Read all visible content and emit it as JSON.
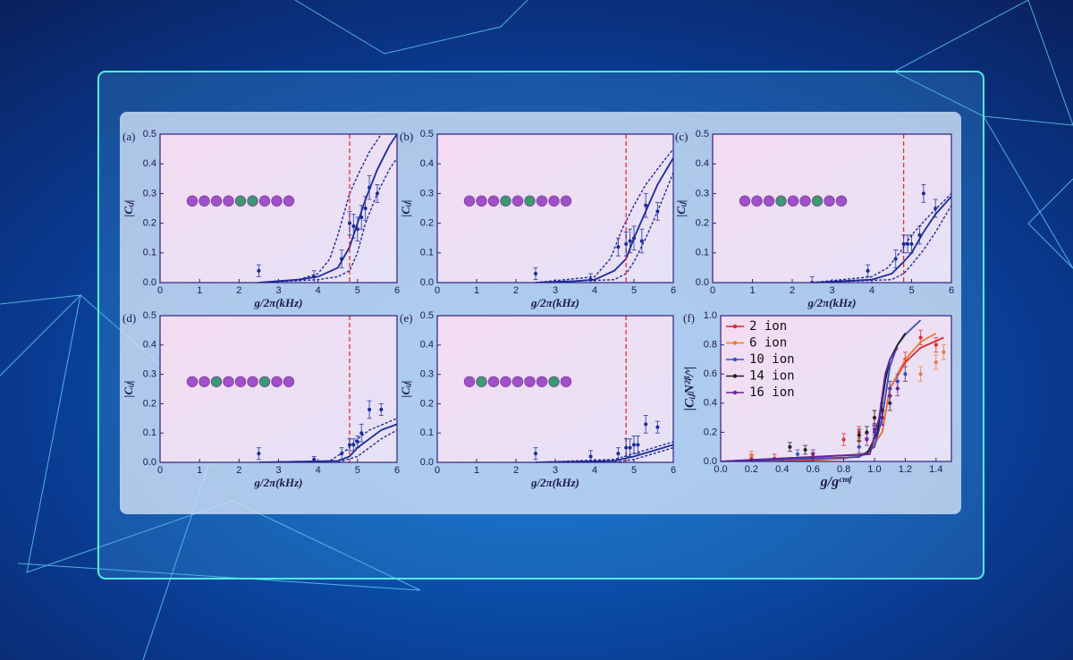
{
  "chart_data": [
    {
      "type": "scatter",
      "label": "(a)",
      "xlabel": "g/2π(kHz)",
      "ylabel": "|Cᵢⱼ|",
      "xlim": [
        0,
        6
      ],
      "xticks": [
        0,
        1,
        2,
        3,
        4,
        5,
        6
      ],
      "ylim": [
        0,
        0.5
      ],
      "yticks": [
        {
          "value": 0,
          "label": "0.0"
        },
        0.1,
        0.2,
        0.3,
        0.4,
        0.5
      ],
      "vline": 4.8,
      "vline_color": "#e03030",
      "color": "#1a2a9a",
      "chain": [
        "#a050c8",
        "#a050c8",
        "#a050c8",
        "#a050c8",
        "#3a9a70",
        "#3a9a70",
        "#a050c8",
        "#a050c8",
        "#a050c8"
      ],
      "points": {
        "x": [
          2.5,
          3.9,
          4.6,
          4.8,
          4.9,
          5.0,
          5.1,
          5.2,
          5.3,
          5.5
        ],
        "values": [
          0.04,
          0.02,
          0.08,
          0.2,
          0.19,
          0.18,
          0.22,
          0.25,
          0.32,
          0.3
        ],
        "errors": [
          0.02,
          0.02,
          0.03,
          0.04,
          0.04,
          0.04,
          0.04,
          0.04,
          0.04,
          0.03
        ]
      },
      "theory": {
        "x": [
          2.5,
          3,
          3.5,
          4,
          4.5,
          4.8,
          5,
          5.2,
          5.5,
          5.8,
          6
        ],
        "values": [
          0,
          0.005,
          0.01,
          0.02,
          0.05,
          0.12,
          0.2,
          0.28,
          0.38,
          0.46,
          0.5
        ]
      },
      "upper": {
        "x": [
          2.5,
          3.5,
          4,
          4.3,
          4.5,
          4.8,
          5,
          5.3,
          5.6
        ],
        "values": [
          0,
          0.01,
          0.03,
          0.08,
          0.16,
          0.3,
          0.36,
          0.44,
          0.5
        ]
      },
      "lower": {
        "x": [
          2.5,
          4,
          4.5,
          4.8,
          5,
          5.2,
          5.5,
          5.8,
          6
        ],
        "values": [
          0,
          0.01,
          0.02,
          0.04,
          0.1,
          0.2,
          0.3,
          0.38,
          0.42
        ]
      }
    },
    {
      "type": "scatter",
      "label": "(b)",
      "xlabel": "g/2π(kHz)",
      "ylabel": "|Cᵢⱼ|",
      "xlim": [
        0,
        6
      ],
      "xticks": [
        0,
        1,
        2,
        3,
        4,
        5,
        6
      ],
      "ylim": [
        0,
        0.5
      ],
      "yticks": [
        {
          "value": 0,
          "label": "0.0"
        },
        0.1,
        0.2,
        0.3,
        0.4,
        0.5
      ],
      "vline": 4.8,
      "vline_color": "#e03030",
      "color": "#1a2a9a",
      "chain": [
        "#a050c8",
        "#a050c8",
        "#a050c8",
        "#3a9a70",
        "#a050c8",
        "#3a9a70",
        "#a050c8",
        "#a050c8",
        "#a050c8"
      ],
      "points": {
        "x": [
          2.5,
          3.9,
          4.6,
          4.8,
          4.9,
          5.0,
          5.2,
          5.3,
          5.6
        ],
        "values": [
          0.03,
          0.01,
          0.12,
          0.13,
          0.14,
          0.15,
          0.14,
          0.26,
          0.24
        ],
        "errors": [
          0.02,
          0.02,
          0.03,
          0.04,
          0.04,
          0.04,
          0.04,
          0.04,
          0.03
        ]
      },
      "theory": {
        "x": [
          2.5,
          3.5,
          4,
          4.5,
          4.8,
          5,
          5.3,
          5.6,
          6
        ],
        "values": [
          0,
          0.005,
          0.01,
          0.04,
          0.08,
          0.15,
          0.24,
          0.33,
          0.42
        ]
      },
      "upper": {
        "x": [
          2.5,
          4,
          4.4,
          4.7,
          5,
          5.3,
          5.7,
          6
        ],
        "values": [
          0,
          0.02,
          0.08,
          0.18,
          0.26,
          0.33,
          0.4,
          0.45
        ]
      },
      "lower": {
        "x": [
          2.5,
          4.5,
          4.8,
          5,
          5.3,
          5.6,
          6
        ],
        "values": [
          0,
          0.01,
          0.03,
          0.07,
          0.15,
          0.24,
          0.37
        ]
      }
    },
    {
      "type": "scatter",
      "label": "(c)",
      "xlabel": "g/2π(kHz)",
      "ylabel": "|Cᵢⱼ|",
      "xlim": [
        0,
        6
      ],
      "xticks": [
        0,
        1,
        2,
        3,
        4,
        5,
        6
      ],
      "ylim": [
        0,
        0.5
      ],
      "yticks": [
        {
          "value": 0,
          "label": "0.0"
        },
        0.1,
        0.2,
        0.3,
        0.4,
        0.5
      ],
      "vline": 4.8,
      "vline_color": "#e03030",
      "color": "#1a2a9a",
      "chain": [
        "#a050c8",
        "#a050c8",
        "#a050c8",
        "#3a9a70",
        "#a050c8",
        "#a050c8",
        "#3a9a70",
        "#a050c8",
        "#a050c8"
      ],
      "points": {
        "x": [
          2.5,
          3.9,
          4.6,
          4.8,
          4.9,
          5.0,
          5.2,
          5.3,
          5.6
        ],
        "values": [
          0,
          0.04,
          0.08,
          0.13,
          0.13,
          0.13,
          0.16,
          0.3,
          0.25
        ],
        "errors": [
          0.02,
          0.02,
          0.03,
          0.03,
          0.03,
          0.03,
          0.03,
          0.03,
          0.03
        ]
      },
      "theory": {
        "x": [
          2.5,
          4,
          4.5,
          4.8,
          5,
          5.3,
          5.6,
          6
        ],
        "values": [
          0,
          0.01,
          0.03,
          0.07,
          0.1,
          0.17,
          0.23,
          0.29
        ]
      },
      "upper": {
        "x": [
          2.5,
          4,
          4.4,
          4.7,
          5,
          5.4,
          6
        ],
        "values": [
          0,
          0.02,
          0.05,
          0.1,
          0.16,
          0.22,
          0.3
        ]
      },
      "lower": {
        "x": [
          2.5,
          4.5,
          4.8,
          5,
          5.3,
          5.6,
          6
        ],
        "values": [
          0,
          0.01,
          0.03,
          0.06,
          0.11,
          0.17,
          0.26
        ]
      }
    },
    {
      "type": "scatter",
      "label": "(d)",
      "xlabel": "g/2π(kHz)",
      "ylabel": "|Cᵢⱼ|",
      "xlim": [
        0,
        6
      ],
      "xticks": [
        0,
        1,
        2,
        3,
        4,
        5,
        6
      ],
      "ylim": [
        0,
        0.5
      ],
      "yticks": [
        {
          "value": 0,
          "label": "0.0"
        },
        0.1,
        0.2,
        0.3,
        0.4,
        0.5
      ],
      "vline": 4.8,
      "vline_color": "#e03030",
      "color": "#1a2a9a",
      "chain": [
        "#a050c8",
        "#a050c8",
        "#3a9a70",
        "#a050c8",
        "#a050c8",
        "#a050c8",
        "#3a9a70",
        "#a050c8",
        "#a050c8"
      ],
      "points": {
        "x": [
          2.5,
          3.9,
          4.6,
          4.8,
          4.9,
          5.0,
          5.1,
          5.3,
          5.6
        ],
        "values": [
          0.03,
          0.01,
          0.03,
          0.06,
          0.06,
          0.07,
          0.1,
          0.18,
          0.18
        ],
        "errors": [
          0.02,
          0.01,
          0.02,
          0.02,
          0.02,
          0.02,
          0.03,
          0.03,
          0.02
        ]
      },
      "theory": {
        "x": [
          2.5,
          4.5,
          4.8,
          5,
          5.3,
          5.6,
          6
        ],
        "values": [
          0,
          0.005,
          0.02,
          0.05,
          0.08,
          0.11,
          0.13
        ]
      },
      "upper": {
        "x": [
          2.5,
          4.3,
          4.7,
          5,
          5.3,
          6
        ],
        "values": [
          0,
          0.005,
          0.04,
          0.08,
          0.11,
          0.15
        ]
      },
      "lower": {
        "x": [
          4.5,
          5,
          5.3,
          5.6,
          6
        ],
        "values": [
          0,
          0.02,
          0.05,
          0.08,
          0.11
        ]
      }
    },
    {
      "type": "scatter",
      "label": "(e)",
      "xlabel": "g/2π(kHz)",
      "ylabel": "|Cᵢⱼ|",
      "xlim": [
        0,
        6
      ],
      "xticks": [
        0,
        1,
        2,
        3,
        4,
        5,
        6
      ],
      "ylim": [
        0,
        0.5
      ],
      "yticks": [
        {
          "value": 0,
          "label": "0.0"
        },
        0.1,
        0.2,
        0.3,
        0.4,
        0.5
      ],
      "vline": 4.8,
      "vline_color": "#e03030",
      "color": "#1a2a9a",
      "chain": [
        "#a050c8",
        "#3a9a70",
        "#a050c8",
        "#a050c8",
        "#a050c8",
        "#a050c8",
        "#a050c8",
        "#3a9a70",
        "#a050c8"
      ],
      "points": {
        "x": [
          2.5,
          3.9,
          4.6,
          4.8,
          4.9,
          5.0,
          5.1,
          5.3,
          5.6
        ],
        "values": [
          0.03,
          0.02,
          0.03,
          0.05,
          0.05,
          0.06,
          0.06,
          0.13,
          0.12
        ],
        "errors": [
          0.02,
          0.02,
          0.02,
          0.03,
          0.03,
          0.03,
          0.03,
          0.03,
          0.02
        ]
      },
      "theory": {
        "x": [
          2.5,
          4.5,
          5,
          5.5,
          6
        ],
        "values": [
          0,
          0.005,
          0.02,
          0.04,
          0.06
        ]
      },
      "upper": {
        "x": [
          2.5,
          4.5,
          5,
          5.5,
          6
        ],
        "values": [
          0,
          0.01,
          0.03,
          0.05,
          0.07
        ]
      },
      "lower": {
        "x": [
          4.5,
          5,
          5.5,
          6
        ],
        "values": [
          0,
          0.01,
          0.03,
          0.05
        ]
      }
    },
    {
      "type": "line",
      "label": "(f)",
      "xlabel": "g/gᶜᵐᶠ",
      "ylabel": "|CᵢⱼN²ᵝ/ᵛ|",
      "xlim": [
        0,
        1.5
      ],
      "xticks": [
        {
          "value": 0,
          "label": "0.0"
        },
        0.2,
        0.4,
        0.6,
        0.8,
        {
          "value": 1,
          "label": "1.0"
        },
        1.2,
        1.4
      ],
      "ylim": [
        0,
        1
      ],
      "yticks": [
        {
          "value": 0,
          "label": "0.0"
        },
        0.2,
        0.4,
        0.6,
        0.8,
        {
          "value": 1,
          "label": "1.0"
        }
      ],
      "legend": "upper left",
      "series": [
        {
          "name": "2 ion",
          "color": "#e02828",
          "x": [
            0.2,
            0.35,
            0.6,
            0.8,
            0.9,
            1.0,
            1.1,
            1.2,
            1.3,
            1.4
          ],
          "values": [
            0.02,
            0.02,
            0.03,
            0.15,
            0.2,
            0.3,
            0.5,
            0.7,
            0.85,
            0.8
          ],
          "errors": [
            0.03,
            0.03,
            0.03,
            0.04,
            0.04,
            0.05,
            0.05,
            0.05,
            0.05,
            0.05
          ],
          "curve_x": [
            0,
            0.5,
            0.8,
            0.95,
            1.05,
            1.1,
            1.2,
            1.3,
            1.45
          ],
          "curve": [
            0,
            0.005,
            0.02,
            0.05,
            0.2,
            0.5,
            0.68,
            0.78,
            0.85
          ]
        },
        {
          "name": "6 ion",
          "color": "#f07830",
          "x": [
            0.2,
            0.6,
            0.9,
            1.0,
            1.1,
            1.2,
            1.3,
            1.4,
            1.45
          ],
          "values": [
            0.04,
            0.03,
            0.14,
            0.2,
            0.45,
            0.6,
            0.6,
            0.68,
            0.75
          ],
          "errors": [
            0.03,
            0.03,
            0.04,
            0.04,
            0.05,
            0.05,
            0.05,
            0.05,
            0.05
          ],
          "curve_x": [
            0,
            0.8,
            0.95,
            1.05,
            1.1,
            1.2,
            1.3,
            1.4
          ],
          "curve": [
            0,
            0.02,
            0.06,
            0.2,
            0.5,
            0.7,
            0.82,
            0.88
          ]
        },
        {
          "name": "10 ion",
          "color": "#3050c0",
          "x": [
            0.5,
            0.9,
            1.0,
            1.05,
            1.1,
            1.15,
            1.2
          ],
          "values": [
            0.05,
            0.1,
            0.2,
            0.3,
            0.5,
            0.55,
            0.6
          ],
          "errors": [
            0.03,
            0.04,
            0.04,
            0.05,
            0.05,
            0.05,
            0.05
          ],
          "curve_x": [
            0,
            0.9,
            1.0,
            1.05,
            1.1,
            1.15,
            1.2,
            1.3
          ],
          "curve": [
            0,
            0.03,
            0.1,
            0.3,
            0.65,
            0.8,
            0.87,
            0.97
          ]
        },
        {
          "name": "14 ion",
          "color": "#202020",
          "x": [
            0.45,
            0.55,
            0.9,
            0.95,
            1.0,
            1.05,
            1.1
          ],
          "values": [
            0.1,
            0.08,
            0.18,
            0.2,
            0.3,
            0.35,
            0.4
          ],
          "errors": [
            0.03,
            0.03,
            0.04,
            0.04,
            0.05,
            0.05,
            0.05
          ],
          "curve_x": [
            0,
            0.95,
            1.02,
            1.07,
            1.1,
            1.15,
            1.2
          ],
          "curve": [
            0,
            0.05,
            0.2,
            0.55,
            0.7,
            0.8,
            0.88
          ]
        },
        {
          "name": "16 ion",
          "color": "#6a20a0",
          "x": [
            0.6,
            0.95,
            1.0,
            1.05,
            1.1,
            1.15
          ],
          "values": [
            0.05,
            0.15,
            0.22,
            0.3,
            0.45,
            0.5
          ],
          "errors": [
            0.03,
            0.04,
            0.04,
            0.05,
            0.05,
            0.05
          ],
          "curve_x": [
            0,
            0.97,
            1.03,
            1.07,
            1.1,
            1.15
          ],
          "curve": [
            0,
            0.05,
            0.3,
            0.6,
            0.7,
            0.78
          ]
        }
      ]
    }
  ]
}
